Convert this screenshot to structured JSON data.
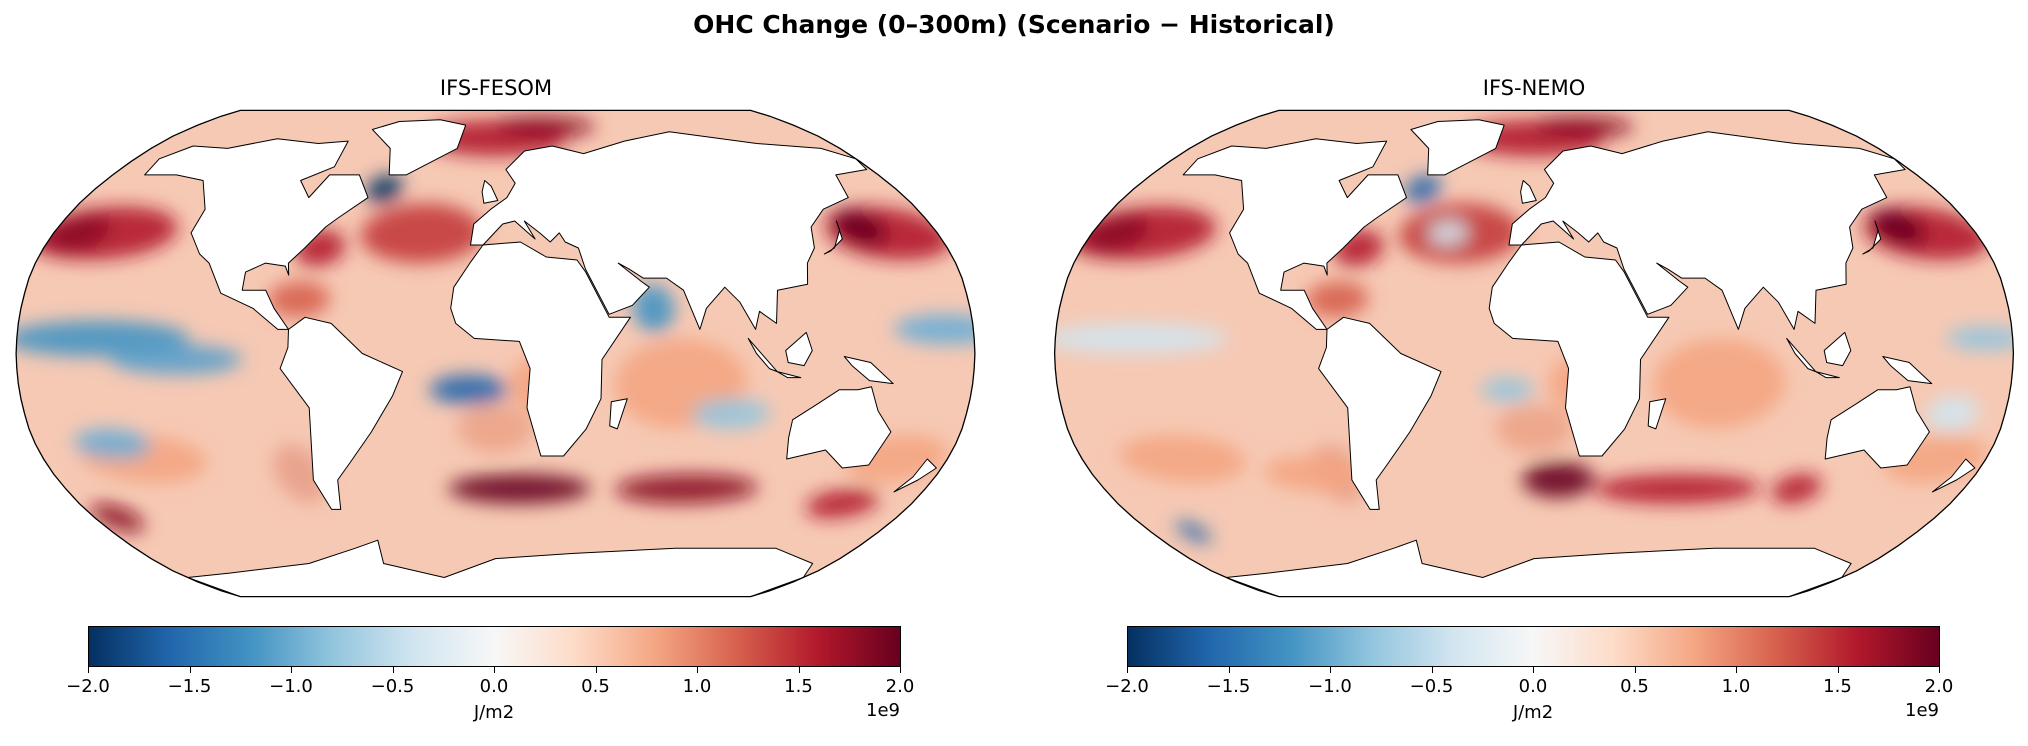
{
  "figure": {
    "title": "OHC Change (0–300m) (Scenario − Historical)"
  },
  "panels": [
    {
      "title": "IFS-FESOM"
    },
    {
      "title": "IFS-NEMO"
    }
  ],
  "colorbar": {
    "colormap": "RdBu_r",
    "range": [
      -2.0,
      2.0
    ],
    "ticks": [
      "−2.0",
      "−1.5",
      "−1.0",
      "−0.5",
      "0.0",
      "0.5",
      "1.0",
      "1.5",
      "2.0"
    ],
    "label": "J/m2",
    "offset_text": "1e9",
    "colors": [
      "#053061",
      "#2166ac",
      "#4393c3",
      "#92c5de",
      "#d1e5f0",
      "#f7f7f7",
      "#fddbc7",
      "#f4a582",
      "#d6604d",
      "#b2182b",
      "#67001f"
    ]
  },
  "projection": "Robinson"
}
